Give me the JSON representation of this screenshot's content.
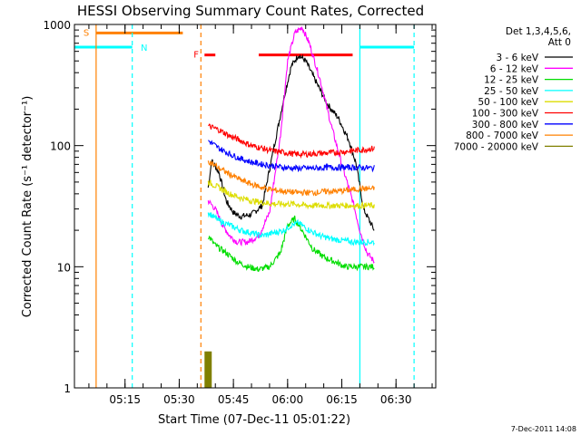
{
  "chart_data": {
    "type": "line",
    "title": "HESSI Observing Summary Count Rates, Corrected",
    "xlabel": "Start Time (07-Dec-11 05:01:22)",
    "ylabel": "Corrected Count Rate (s⁻¹ detector⁻¹)",
    "y_scale": "log",
    "ylim": [
      1,
      1000
    ],
    "xlim": [
      "05:01",
      "06:41"
    ],
    "y_ticks": [
      "1",
      "10",
      "100",
      "1000"
    ],
    "x_ticks": [
      "05:15",
      "05:30",
      "05:45",
      "06:00",
      "06:15",
      "06:30"
    ],
    "legend_title": [
      "Det 1,3,4,5,6,",
      "Att 0"
    ],
    "legend_position": "right",
    "footer_stamp": "7-Dec-2011 14:08",
    "series": [
      {
        "name": "3 - 6 keV",
        "color": "#000000",
        "x": [
          "05:38",
          "05:39",
          "05:41",
          "05:43",
          "05:45",
          "05:47",
          "05:50",
          "05:53",
          "05:56",
          "05:59",
          "06:01",
          "06:03",
          "06:05",
          "06:08",
          "06:11",
          "06:14",
          "06:17",
          "06:19",
          "06:21",
          "06:24"
        ],
        "values": [
          45,
          75,
          60,
          35,
          28,
          26,
          27,
          32,
          90,
          250,
          450,
          560,
          500,
          330,
          220,
          170,
          110,
          70,
          30,
          20
        ]
      },
      {
        "name": "6 - 12 keV",
        "color": "#ff00ff",
        "x": [
          "05:38",
          "05:40",
          "05:42",
          "05:44",
          "05:46",
          "05:49",
          "05:52",
          "05:55",
          "05:58",
          "06:00",
          "06:02",
          "06:04",
          "06:06",
          "06:09",
          "06:12",
          "06:15",
          "06:18",
          "06:20",
          "06:22",
          "06:24"
        ],
        "values": [
          35,
          30,
          22,
          18,
          16,
          16,
          18,
          28,
          120,
          500,
          850,
          950,
          700,
          350,
          150,
          70,
          35,
          20,
          13,
          11
        ]
      },
      {
        "name": "12 - 25 keV",
        "color": "#00dd00",
        "x": [
          "05:38",
          "05:40",
          "05:43",
          "05:46",
          "05:49",
          "05:52",
          "05:55",
          "05:58",
          "06:00",
          "06:02",
          "06:04",
          "06:07",
          "06:10",
          "06:13",
          "06:16",
          "06:19",
          "06:21",
          "06:24"
        ],
        "values": [
          18,
          15,
          13,
          11,
          10,
          9.5,
          10,
          13,
          22,
          25,
          20,
          14,
          12,
          11,
          10,
          10,
          10,
          10
        ]
      },
      {
        "name": "25 - 50 keV",
        "color": "#00ffff",
        "x": [
          "05:38",
          "05:41",
          "05:44",
          "05:47",
          "05:50",
          "05:53",
          "05:56",
          "05:59",
          "06:01",
          "06:03",
          "06:06",
          "06:09",
          "06:12",
          "06:15",
          "06:18",
          "06:21",
          "06:24"
        ],
        "values": [
          28,
          24,
          22,
          20,
          19,
          18,
          19,
          20,
          22,
          23,
          20,
          18,
          17,
          16.5,
          16,
          16,
          16
        ],
        "attenuator_bar": {
          "value": 650,
          "x": [
            "05:01",
            "05:17",
            "06:20",
            "06:35"
          ]
        }
      },
      {
        "name": "50 - 100 keV",
        "color": "#dddd00",
        "x": [
          "05:38",
          "05:41",
          "05:44",
          "05:47",
          "05:50",
          "05:53",
          "05:56",
          "05:59",
          "06:02",
          "06:05",
          "06:08",
          "06:11",
          "06:14",
          "06:17",
          "06:20",
          "06:24"
        ],
        "values": [
          50,
          45,
          40,
          37,
          35,
          34,
          33,
          33,
          33,
          32,
          32,
          32,
          32,
          32,
          32,
          32
        ]
      },
      {
        "name": "100 - 300 keV",
        "color": "#ff0000",
        "x": [
          "05:38",
          "05:41",
          "05:44",
          "05:47",
          "05:50",
          "05:53",
          "05:56",
          "05:59",
          "06:02",
          "06:05",
          "06:08",
          "06:11",
          "06:14",
          "06:17",
          "06:20",
          "06:24"
        ],
        "values": [
          145,
          135,
          120,
          110,
          100,
          95,
          90,
          88,
          85,
          85,
          86,
          87,
          88,
          90,
          92,
          95
        ]
      },
      {
        "name": "300 - 800 keV",
        "color": "#0000ff",
        "x": [
          "05:38",
          "05:41",
          "05:44",
          "05:47",
          "05:50",
          "05:53",
          "05:56",
          "05:59",
          "06:02",
          "06:05",
          "06:08",
          "06:11",
          "06:14",
          "06:17",
          "06:20",
          "06:24"
        ],
        "values": [
          110,
          95,
          85,
          78,
          73,
          70,
          68,
          66,
          65,
          65,
          65,
          66,
          66,
          66,
          66,
          65
        ]
      },
      {
        "name": "800 - 7000 keV",
        "color": "#ff8000",
        "x": [
          "05:38",
          "05:41",
          "05:44",
          "05:47",
          "05:50",
          "05:53",
          "05:56",
          "05:59",
          "06:02",
          "06:05",
          "06:08",
          "06:11",
          "06:14",
          "06:17",
          "06:20",
          "06:24"
        ],
        "values": [
          75,
          65,
          58,
          52,
          48,
          45,
          43,
          42,
          41,
          41,
          41,
          42,
          42,
          43,
          44,
          44
        ]
      },
      {
        "name": "7000 - 20000 keV",
        "color": "#808000",
        "bars": [
          {
            "x_start": "05:37",
            "x_end": "05:39",
            "value": 2
          }
        ]
      }
    ],
    "flags": {
      "saa": {
        "label": "S",
        "color": "#ff8000",
        "value": 850,
        "x": [
          "05:07",
          "05:31"
        ]
      },
      "night": {
        "label": "N",
        "color": "#00ffff",
        "value": 650
      },
      "flare": {
        "label": "F",
        "color": "#ff0000",
        "value": 560,
        "segments": [
          [
            "05:37",
            "05:40"
          ],
          [
            "05:52",
            "06:18"
          ]
        ]
      }
    },
    "vertical_markers": [
      {
        "x": "05:07",
        "color": "#ff8000",
        "style": "solid"
      },
      {
        "x": "05:17",
        "color": "#00ffff",
        "style": "dashed"
      },
      {
        "x": "05:36",
        "color": "#ff8000",
        "style": "dashed"
      },
      {
        "x": "06:20",
        "color": "#00ffff",
        "style": "solid"
      },
      {
        "x": "06:35",
        "color": "#00ffff",
        "style": "dashed"
      }
    ]
  }
}
